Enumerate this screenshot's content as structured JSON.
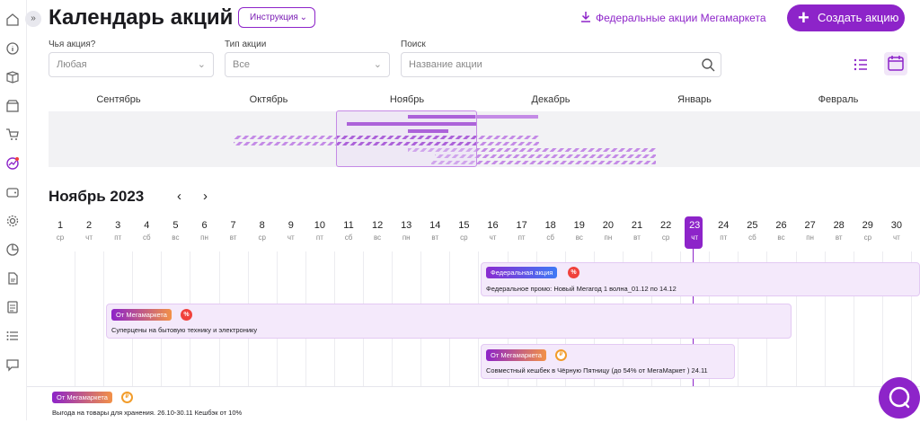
{
  "header": {
    "title": "Календарь акций",
    "instruction_label": "Инструкция",
    "federal_link": "Федеральные акции Мегамаркета",
    "create_button": "Создать акцию"
  },
  "filters": {
    "owner": {
      "label": "Чья акция?",
      "value": "Любая"
    },
    "type": {
      "label": "Тип акции",
      "value": "Все"
    },
    "search": {
      "label": "Поиск",
      "placeholder": "Название акции"
    }
  },
  "overview_months": [
    "Сентябрь",
    "Октябрь",
    "Ноябрь",
    "Декабрь",
    "Январь",
    "Февраль"
  ],
  "calendar": {
    "month_title": "Ноябрь 2023",
    "prev_icon": "‹",
    "next_icon": "›",
    "today": "23",
    "days": [
      {
        "n": "1",
        "wd": "ср"
      },
      {
        "n": "2",
        "wd": "чт"
      },
      {
        "n": "3",
        "wd": "пт"
      },
      {
        "n": "4",
        "wd": "сб"
      },
      {
        "n": "5",
        "wd": "вс"
      },
      {
        "n": "6",
        "wd": "пн"
      },
      {
        "n": "7",
        "wd": "вт"
      },
      {
        "n": "8",
        "wd": "ср"
      },
      {
        "n": "9",
        "wd": "чт"
      },
      {
        "n": "10",
        "wd": "пт"
      },
      {
        "n": "11",
        "wd": "сб"
      },
      {
        "n": "12",
        "wd": "вс"
      },
      {
        "n": "13",
        "wd": "пн"
      },
      {
        "n": "14",
        "wd": "вт"
      },
      {
        "n": "15",
        "wd": "ср"
      },
      {
        "n": "16",
        "wd": "чт"
      },
      {
        "n": "17",
        "wd": "пт"
      },
      {
        "n": "18",
        "wd": "сб"
      },
      {
        "n": "19",
        "wd": "вс"
      },
      {
        "n": "20",
        "wd": "пн"
      },
      {
        "n": "21",
        "wd": "вт"
      },
      {
        "n": "22",
        "wd": "ср"
      },
      {
        "n": "23",
        "wd": "чт"
      },
      {
        "n": "24",
        "wd": "пт"
      },
      {
        "n": "25",
        "wd": "сб"
      },
      {
        "n": "26",
        "wd": "вс"
      },
      {
        "n": "27",
        "wd": "пн"
      },
      {
        "n": "28",
        "wd": "вт"
      },
      {
        "n": "29",
        "wd": "ср"
      },
      {
        "n": "30",
        "wd": "чт"
      }
    ]
  },
  "events": [
    {
      "badge": "Федеральная акция",
      "icon": "%",
      "title": "Федеральное промо: Новый Мегагод 1 волна_01.12 по 14.12"
    },
    {
      "badge": "От Мегамаркета",
      "icon": "%",
      "title": "Суперцены на бытовую технику и электронику"
    },
    {
      "badge": "От Мегамаркета",
      "icon": "cashback",
      "title": "Совместный кешбек в Чёрную Пятницу (до 54% от МегаМаркет ) 24.11"
    },
    {
      "badge": "От Мегамаркета",
      "icon": "cashback",
      "title": "Выгода на товары для хранения. 26.10-30.11 Кешбэк от 10%"
    }
  ],
  "colors": {
    "accent": "#8d24c9",
    "federal_badge_end": "#3f79f5",
    "megamarket_badge_end": "#f29147",
    "percent_icon": "#f0413c"
  }
}
